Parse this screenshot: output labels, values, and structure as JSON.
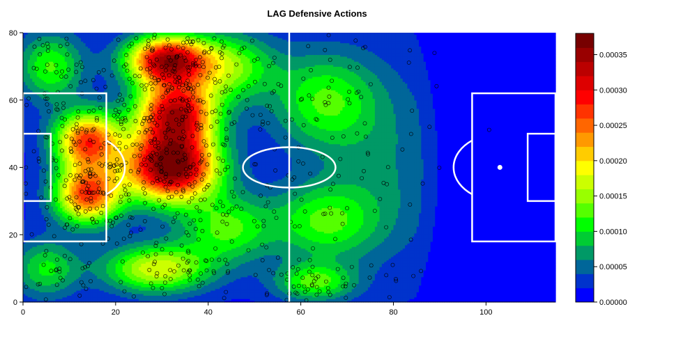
{
  "chart_data": {
    "type": "heatmap",
    "title": "LAG Defensive Actions",
    "xlabel": "",
    "ylabel": "",
    "xlim": [
      0,
      115
    ],
    "ylim": [
      0,
      80
    ],
    "x_ticks": [
      "0",
      "20",
      "40",
      "60",
      "80",
      "100"
    ],
    "x_tick_values": [
      0,
      20,
      40,
      60,
      80,
      100
    ],
    "y_ticks": [
      "0",
      "20",
      "40",
      "60",
      "80"
    ],
    "y_tick_values": [
      0,
      20,
      40,
      60,
      80
    ],
    "colorbar_ticks": [
      "0.00000",
      "0.00005",
      "0.00010",
      "0.00015",
      "0.00020",
      "0.00025",
      "0.00030",
      "0.00035"
    ],
    "colorbar_tick_values": [
      0,
      5e-05,
      0.0001,
      0.00015,
      0.0002,
      0.00025,
      0.0003,
      0.00035
    ],
    "colorbar_range": [
      0,
      0.00038
    ],
    "colorbar_colors": [
      "#0000ff",
      "#0033cc",
      "#006699",
      "#009966",
      "#00cc33",
      "#00ff00",
      "#55ff00",
      "#99ff00",
      "#ccff00",
      "#ffff00",
      "#ffcc00",
      "#ff9900",
      "#ff6600",
      "#ff3300",
      "#ff0000",
      "#dd0000",
      "#bb0000",
      "#990000",
      "#770000"
    ],
    "density_hotspots": [
      {
        "x": 32,
        "y": 40,
        "sx": 7,
        "sy": 7,
        "w": 1.0
      },
      {
        "x": 33,
        "y": 56,
        "sx": 6,
        "sy": 7,
        "w": 0.85
      },
      {
        "x": 31,
        "y": 72,
        "sx": 6,
        "sy": 5,
        "w": 0.85
      },
      {
        "x": 14,
        "y": 48,
        "sx": 5,
        "sy": 6,
        "w": 0.7
      },
      {
        "x": 14,
        "y": 32,
        "sx": 5,
        "sy": 6,
        "w": 0.7
      },
      {
        "x": 29,
        "y": 10,
        "sx": 8,
        "sy": 5,
        "w": 0.45
      },
      {
        "x": 44,
        "y": 70,
        "sx": 7,
        "sy": 7,
        "w": 0.35
      },
      {
        "x": 44,
        "y": 22,
        "sx": 7,
        "sy": 7,
        "w": 0.3
      },
      {
        "x": 65,
        "y": 60,
        "sx": 8,
        "sy": 10,
        "w": 0.28
      },
      {
        "x": 65,
        "y": 24,
        "sx": 8,
        "sy": 8,
        "w": 0.28
      },
      {
        "x": 63,
        "y": 6,
        "sx": 6,
        "sy": 4,
        "w": 0.3
      },
      {
        "x": 6,
        "y": 70,
        "sx": 5,
        "sy": 7,
        "w": 0.3
      },
      {
        "x": 5,
        "y": 10,
        "sx": 5,
        "sy": 6,
        "w": 0.25
      },
      {
        "x": 78,
        "y": 40,
        "sx": 10,
        "sy": 20,
        "w": 0.12
      }
    ],
    "point_count": 900,
    "pitch_lines_color": "#ffffff"
  }
}
